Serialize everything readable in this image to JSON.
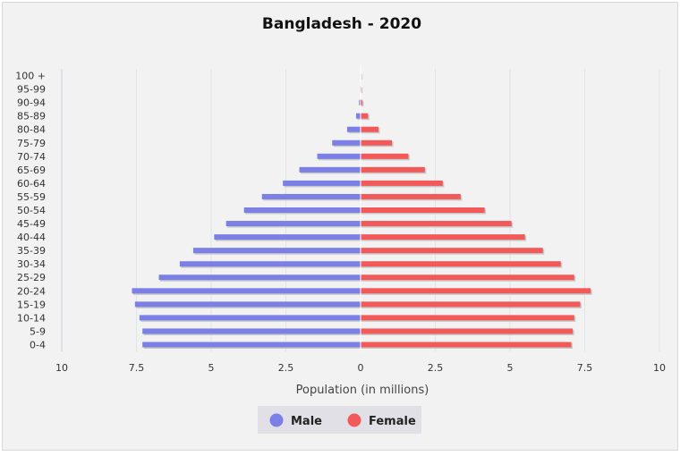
{
  "chart_data": {
    "type": "bar",
    "orientation": "horizontal-population-pyramid",
    "title": "Bangladesh - 2020",
    "xlabel": "Population (in millions)",
    "ylabel": "",
    "xlim": [
      -10,
      10
    ],
    "x_ticks": [
      -10,
      -7.5,
      -5,
      -2.5,
      0,
      2.5,
      5,
      7.5,
      10
    ],
    "x_tick_labels": [
      "10",
      "7.5",
      "5",
      "2.5",
      "0",
      "2.5",
      "5",
      "7.5",
      "10"
    ],
    "grid": true,
    "legend_position": "bottom-center",
    "categories": [
      "0-4",
      "5-9",
      "10-14",
      "15-19",
      "20-24",
      "25-29",
      "30-34",
      "35-39",
      "40-44",
      "45-49",
      "50-54",
      "55-59",
      "60-64",
      "65-69",
      "70-74",
      "75-79",
      "80-84",
      "85-89",
      "90-94",
      "95-99",
      "100 +"
    ],
    "series": [
      {
        "name": "Male",
        "color": "#7b7fe6",
        "values": [
          7.3,
          7.3,
          7.4,
          7.55,
          7.65,
          6.75,
          6.05,
          5.6,
          4.9,
          4.5,
          3.9,
          3.3,
          2.6,
          2.05,
          1.45,
          0.95,
          0.45,
          0.15,
          0.05,
          0.02,
          0.01
        ]
      },
      {
        "name": "Female",
        "color": "#f25a5a",
        "values": [
          7.05,
          7.1,
          7.15,
          7.35,
          7.7,
          7.15,
          6.7,
          6.1,
          5.5,
          5.05,
          4.15,
          3.35,
          2.75,
          2.15,
          1.6,
          1.05,
          0.6,
          0.25,
          0.06,
          0.02,
          0.01
        ]
      }
    ]
  }
}
